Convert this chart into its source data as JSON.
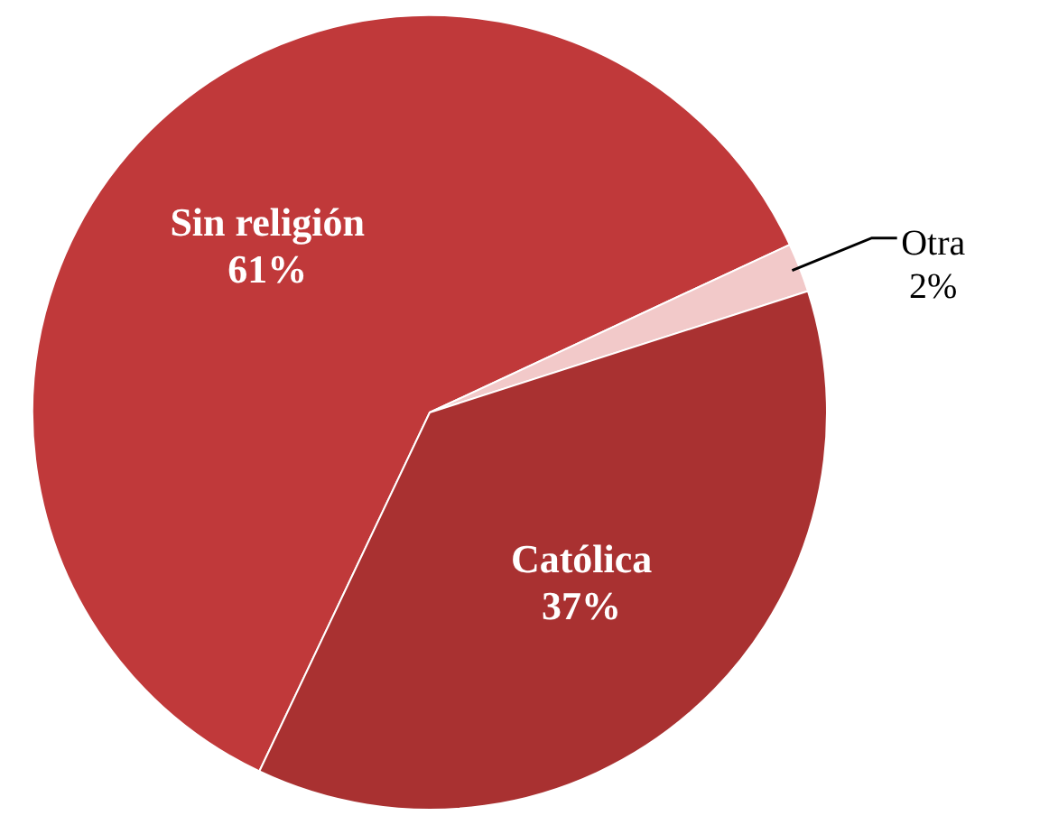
{
  "chart_data": {
    "type": "pie",
    "categories": [
      "Sin religión",
      "Otra",
      "Católica"
    ],
    "values": [
      61,
      2,
      37
    ],
    "value_labels": [
      "61%",
      "2%",
      "37%"
    ],
    "colors": [
      "#c0393a",
      "#f2c9c9",
      "#a93131"
    ],
    "legend": false
  }
}
